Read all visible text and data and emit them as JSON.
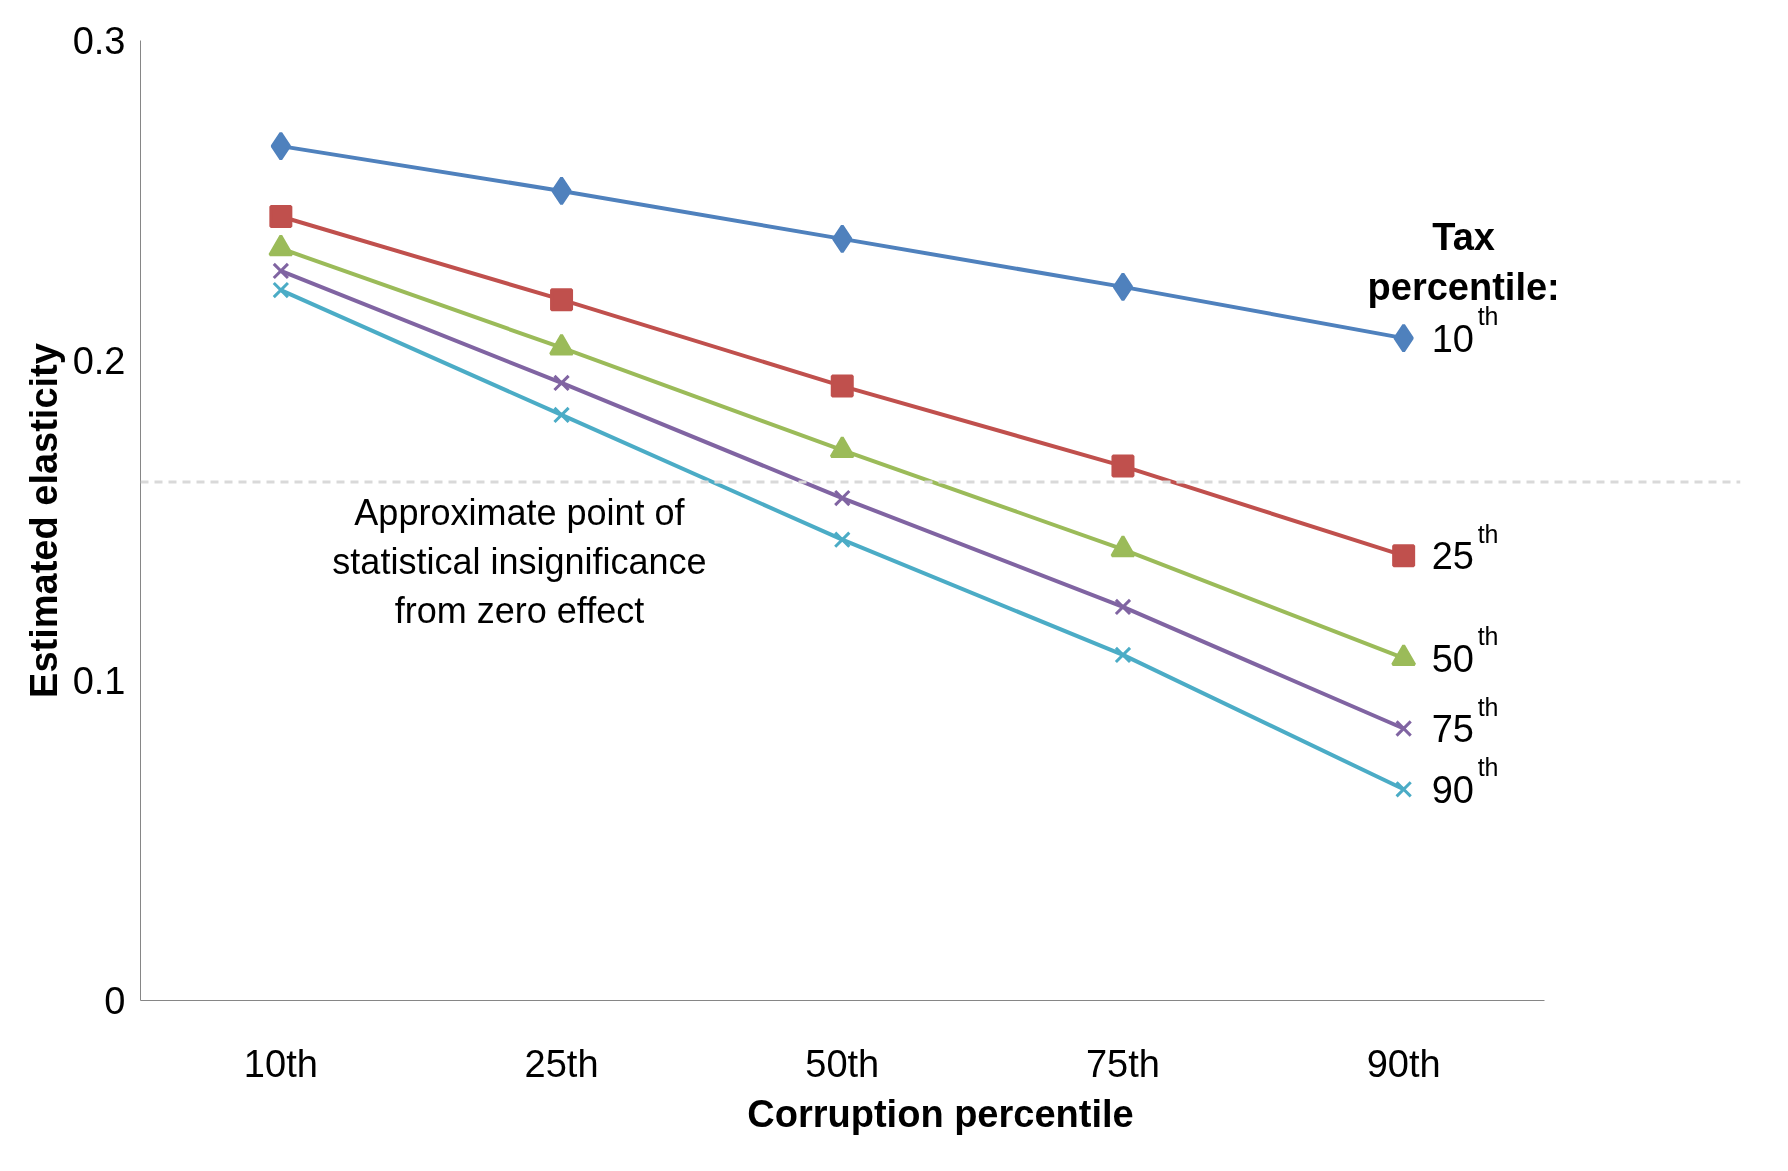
{
  "chart_data": {
    "type": "line",
    "xlabel": "Corruption percentile",
    "ylabel": "Estimated elasticity",
    "legend_title": "Tax\npercentile:",
    "categories": [
      "10th",
      "25th",
      "50th",
      "75th",
      "90th"
    ],
    "ylim": [
      0,
      0.3
    ],
    "yticks": [
      0,
      0.1,
      0.2,
      0.3
    ],
    "grid": false,
    "legend": "right",
    "series": [
      {
        "name": "10$^{th}$",
        "color": "#4f81bd",
        "marker": "diamond",
        "values": [
          0.267,
          0.253,
          0.238,
          0.223,
          0.207
        ]
      },
      {
        "name": "25$^{th}$",
        "color": "#c0504d",
        "marker": "square",
        "values": [
          0.245,
          0.219,
          0.192,
          0.167,
          0.139
        ]
      },
      {
        "name": "50$^{th}$",
        "color": "#9bbb59",
        "marker": "triangle",
        "values": [
          0.235,
          0.204,
          0.172,
          0.141,
          0.107
        ]
      },
      {
        "name": "75$^{th}$",
        "color": "#8064a2",
        "marker": "cross",
        "values": [
          0.228,
          0.193,
          0.157,
          0.123,
          0.085
        ]
      },
      {
        "name": "90$^{th}$",
        "color": "#4bacc6",
        "marker": "cross",
        "values": [
          0.222,
          0.183,
          0.144,
          0.108,
          0.066
        ]
      }
    ],
    "ref_lines": [
      {
        "axis": "y",
        "value": 0.162,
        "label": "Approximate point of\nstatistical insignificance\nfrom zero effect",
        "color": "#d9d9d9",
        "line_style": "dashed"
      }
    ]
  }
}
